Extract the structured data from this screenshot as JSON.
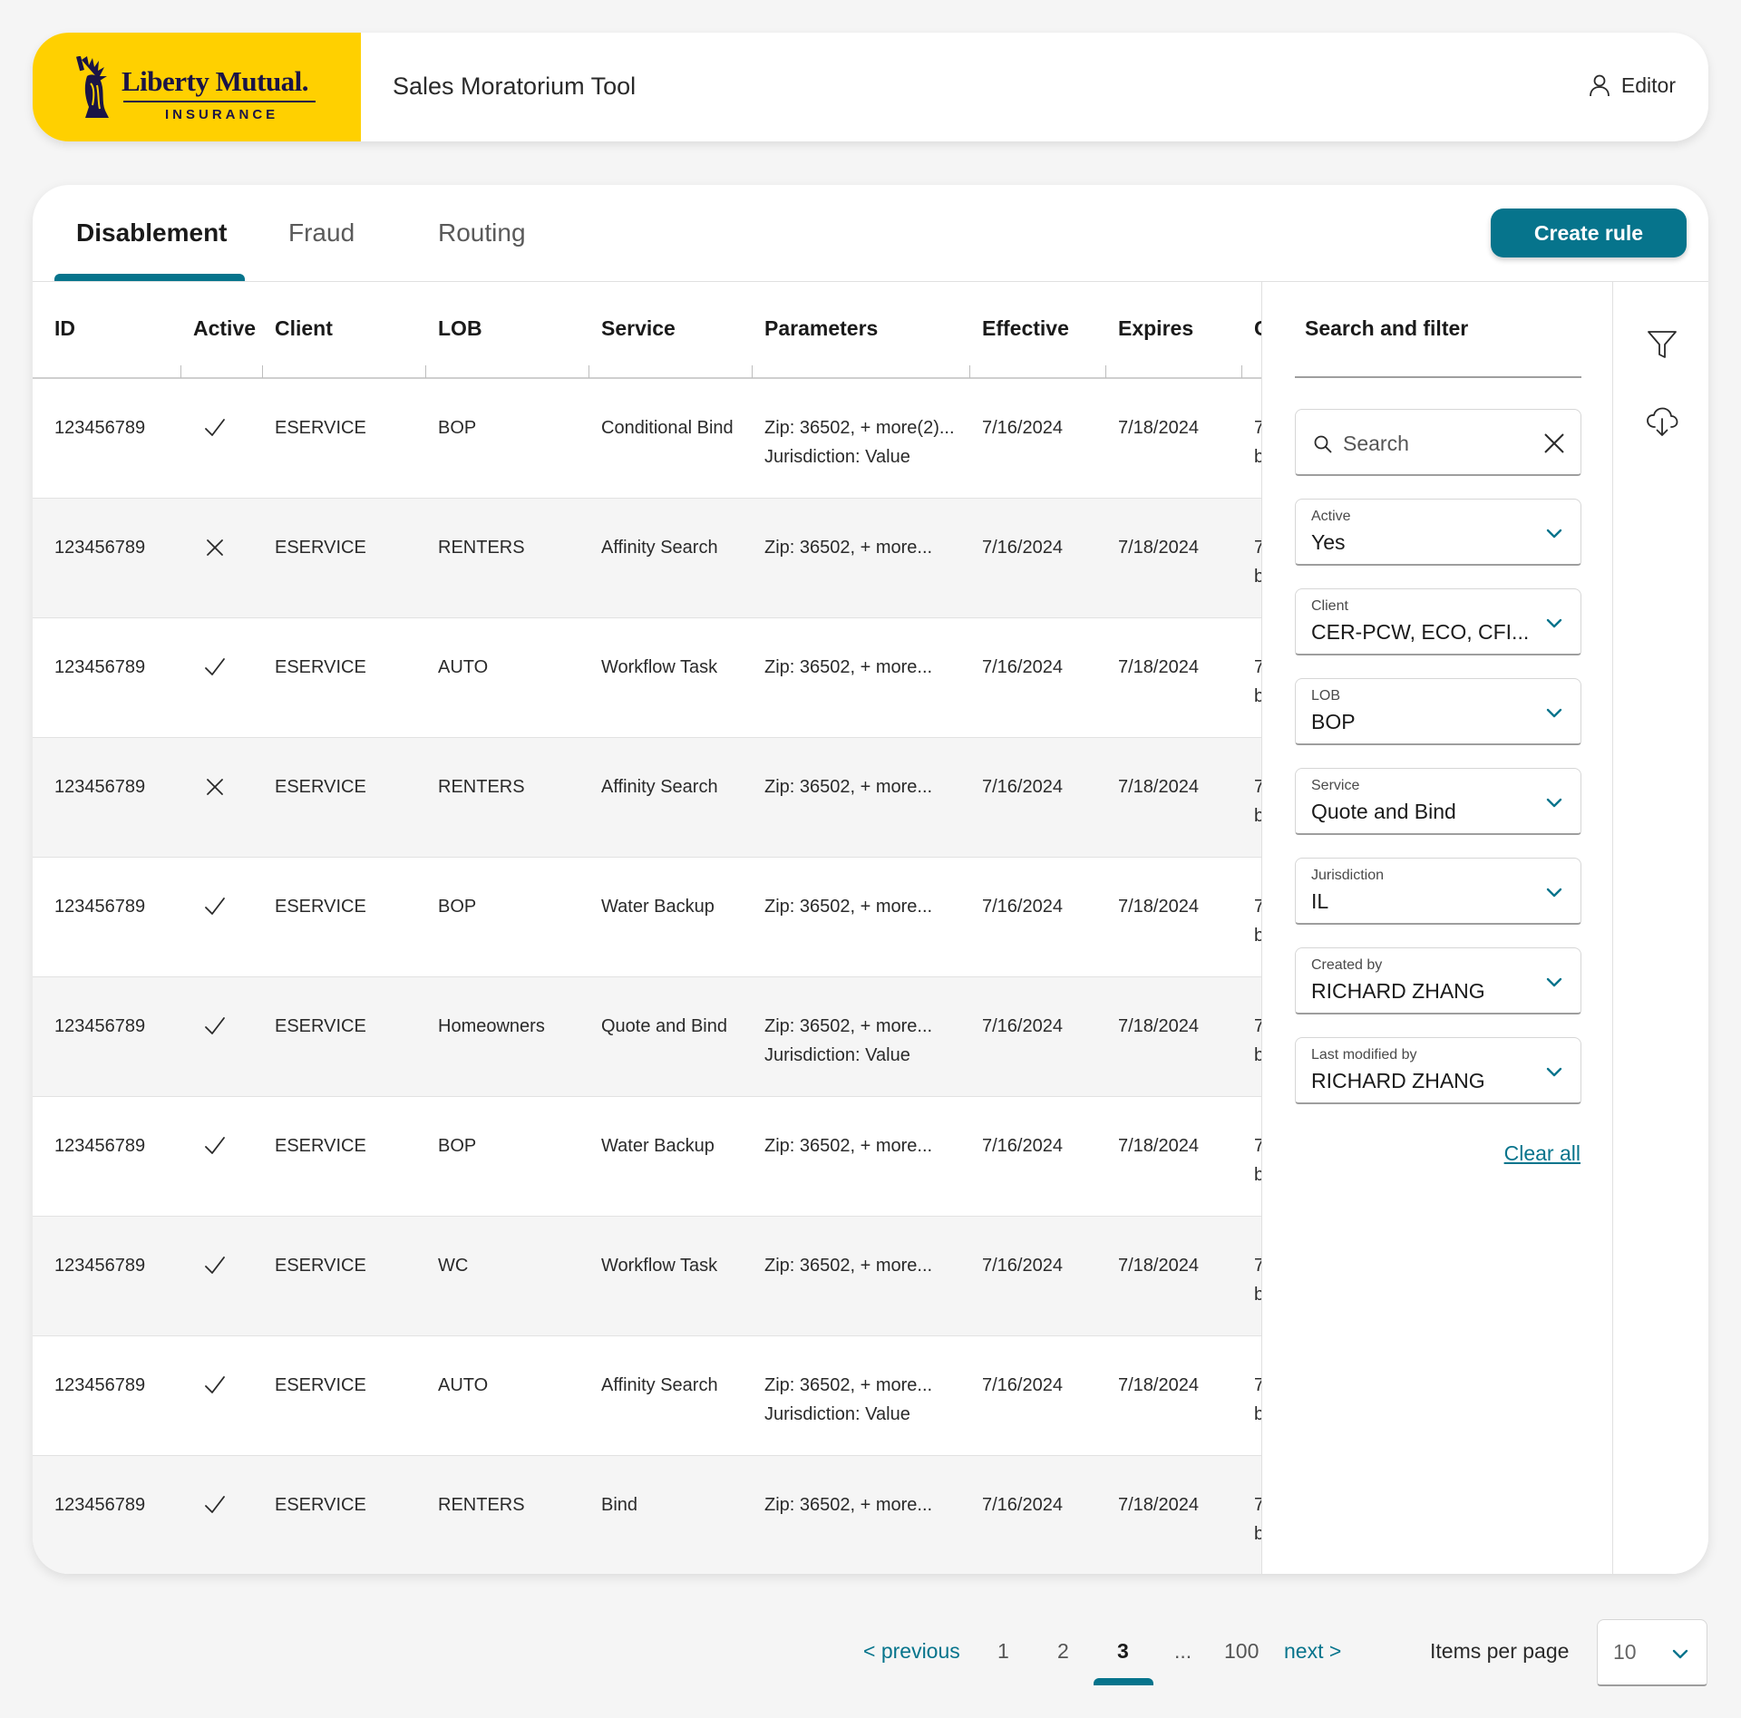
{
  "header": {
    "logo_wordmark": "Liberty Mutual.",
    "logo_subtitle": "INSURANCE",
    "app_title": "Sales Moratorium Tool",
    "user_role": "Editor",
    "user_icon": "user-icon"
  },
  "tabs": [
    {
      "label": "Disablement",
      "active": true
    },
    {
      "label": "Fraud",
      "active": false
    },
    {
      "label": "Routing",
      "active": false
    }
  ],
  "create_button": "Create rule",
  "colors": {
    "accent": "#06748c",
    "brand_yellow": "#ffd000"
  },
  "table": {
    "columns": [
      "ID",
      "Active",
      "Client",
      "LOB",
      "Service",
      "Parameters",
      "Effective",
      "Expires",
      "C"
    ],
    "rows": [
      {
        "id": "123456789",
        "active": true,
        "client": "ESERVICE",
        "lob": "BOP",
        "service": "Conditional Bind",
        "params1": "Zip: 36502, + more(2)...",
        "params2": "Jurisdiction: Value",
        "effective": "7/16/2024",
        "expires": "7/18/2024",
        "c1": "7",
        "c2": "b"
      },
      {
        "id": "123456789",
        "active": false,
        "client": "ESERVICE",
        "lob": "RENTERS",
        "service": "Affinity Search",
        "params1": "Zip: 36502, + more...",
        "params2": "",
        "effective": "7/16/2024",
        "expires": "7/18/2024",
        "c1": "7",
        "c2": "b"
      },
      {
        "id": "123456789",
        "active": true,
        "client": "ESERVICE",
        "lob": "AUTO",
        "service": "Workflow Task",
        "params1": "Zip: 36502, + more...",
        "params2": "",
        "effective": "7/16/2024",
        "expires": "7/18/2024",
        "c1": "7",
        "c2": "b"
      },
      {
        "id": "123456789",
        "active": false,
        "client": "ESERVICE",
        "lob": "RENTERS",
        "service": "Affinity Search",
        "params1": "Zip: 36502, + more...",
        "params2": "",
        "effective": "7/16/2024",
        "expires": "7/18/2024",
        "c1": "7",
        "c2": "b"
      },
      {
        "id": "123456789",
        "active": true,
        "client": "ESERVICE",
        "lob": "BOP",
        "service": "Water Backup",
        "params1": "Zip: 36502, + more...",
        "params2": "",
        "effective": "7/16/2024",
        "expires": "7/18/2024",
        "c1": "7",
        "c2": "b"
      },
      {
        "id": "123456789",
        "active": true,
        "client": "ESERVICE",
        "lob": "Homeowners",
        "service": "Quote and Bind",
        "params1": "Zip: 36502, + more...",
        "params2": "Jurisdiction: Value",
        "effective": "7/16/2024",
        "expires": "7/18/2024",
        "c1": "7",
        "c2": "b"
      },
      {
        "id": "123456789",
        "active": true,
        "client": "ESERVICE",
        "lob": "BOP",
        "service": "Water Backup",
        "params1": "Zip: 36502, + more...",
        "params2": "",
        "effective": "7/16/2024",
        "expires": "7/18/2024",
        "c1": "7",
        "c2": "b"
      },
      {
        "id": "123456789",
        "active": true,
        "client": "ESERVICE",
        "lob": "WC",
        "service": "Workflow Task",
        "params1": "Zip: 36502, + more...",
        "params2": "",
        "effective": "7/16/2024",
        "expires": "7/18/2024",
        "c1": "7",
        "c2": "b"
      },
      {
        "id": "123456789",
        "active": true,
        "client": "ESERVICE",
        "lob": "AUTO",
        "service": "Affinity Search",
        "params1": "Zip: 36502, + more...",
        "params2": "Jurisdiction: Value",
        "effective": "7/16/2024",
        "expires": "7/18/2024",
        "c1": "7",
        "c2": "b"
      },
      {
        "id": "123456789",
        "active": true,
        "client": "ESERVICE",
        "lob": "RENTERS",
        "service": "Bind",
        "params1": "Zip: 36502, + more...",
        "params2": "",
        "effective": "7/16/2024",
        "expires": "7/18/2024",
        "c1": "7",
        "c2": "b"
      }
    ]
  },
  "filter": {
    "title": "Search and filter",
    "search_placeholder": "Search",
    "search_value": "",
    "dropdowns": [
      {
        "label": "Active",
        "value": "Yes"
      },
      {
        "label": "Client",
        "value": "CER-PCW, ECO, CFI..."
      },
      {
        "label": "LOB",
        "value": "BOP"
      },
      {
        "label": "Service",
        "value": "Quote and Bind"
      },
      {
        "label": "Jurisdiction",
        "value": "IL"
      },
      {
        "label": "Created by",
        "value": "RICHARD ZHANG"
      },
      {
        "label": "Last modified by",
        "value": "RICHARD ZHANG"
      }
    ],
    "clear_all": "Clear all"
  },
  "rail_icons": [
    "filter-icon",
    "cloud-download-icon"
  ],
  "pagination": {
    "previous": "< previous",
    "pages": [
      "1",
      "2",
      "3",
      "...",
      "100"
    ],
    "current": "3",
    "next": "next >",
    "items_per_page_label": "Items per page",
    "items_per_page_value": "10"
  }
}
